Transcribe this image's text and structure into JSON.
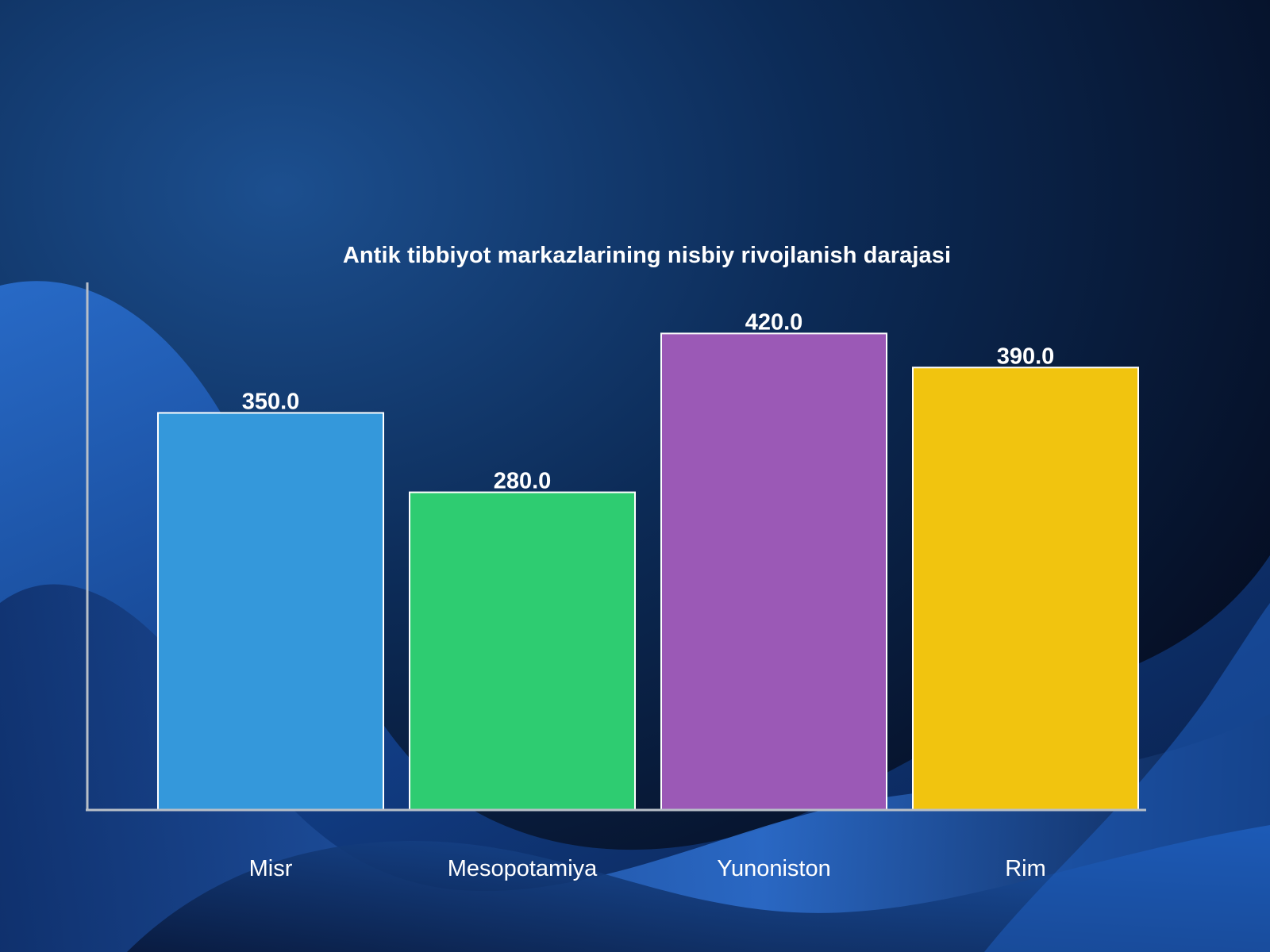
{
  "chart_data": {
    "type": "bar",
    "title": "Antik tibbiyot markazlarining nisbiy rivojlanish darajasi",
    "categories": [
      "Misr",
      "Mesopotamiya",
      "Yunoniston",
      "Rim"
    ],
    "values": [
      350.0,
      280.0,
      420.0,
      390.0
    ],
    "value_labels": [
      "350.0",
      "280.0",
      "420.0",
      "390.0"
    ],
    "colors": [
      "#3498db",
      "#2ecc71",
      "#9b59b6",
      "#f1c40f"
    ],
    "xlabel": "",
    "ylabel": "",
    "ylim": [
      0,
      465
    ],
    "grid": false,
    "legend": "none"
  },
  "theme": {
    "bar_border": "#ffffff",
    "axis_color": "#b8bfc8",
    "text_color": "#ffffff"
  }
}
